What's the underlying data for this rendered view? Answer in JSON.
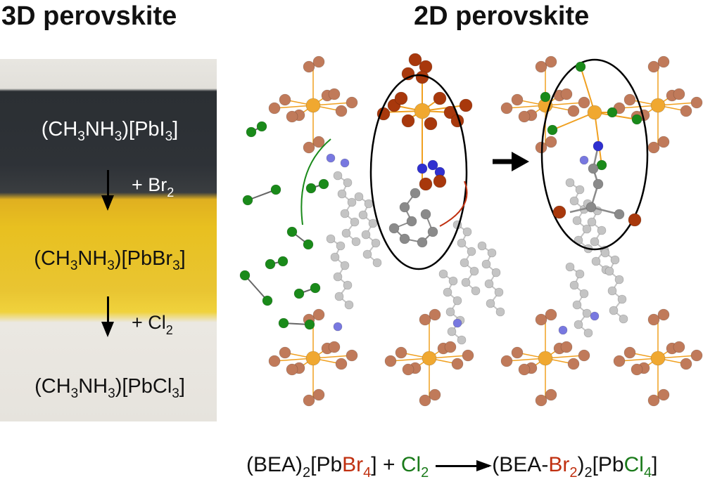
{
  "titles": {
    "left": "3D perovskite",
    "right": "2D perovskite"
  },
  "left_panel": {
    "formulas": [
      [
        {
          "t": "(CH"
        },
        {
          "t": "3",
          "sub": true
        },
        {
          "t": "NH"
        },
        {
          "t": "3",
          "sub": true
        },
        {
          "t": ")[PbI"
        },
        {
          "t": "3",
          "sub": true
        },
        {
          "t": "]"
        }
      ],
      [
        {
          "t": "(CH"
        },
        {
          "t": "3",
          "sub": true
        },
        {
          "t": "NH"
        },
        {
          "t": "3",
          "sub": true
        },
        {
          "t": ")[PbBr"
        },
        {
          "t": "3",
          "sub": true
        },
        {
          "t": "]"
        }
      ],
      [
        {
          "t": "(CH"
        },
        {
          "t": "3",
          "sub": true
        },
        {
          "t": "NH"
        },
        {
          "t": "3",
          "sub": true
        },
        {
          "t": ")[PbCl"
        },
        {
          "t": "3",
          "sub": true
        },
        {
          "t": "]"
        }
      ]
    ],
    "reagents": [
      [
        {
          "t": "+ Br"
        },
        {
          "t": "2",
          "sub": true
        }
      ],
      [
        {
          "t": "+ Cl"
        },
        {
          "t": "2",
          "sub": true
        }
      ]
    ],
    "band_colors": {
      "dark": "#2e3237",
      "yellow": "#e8c020",
      "white": "#e6e3dd"
    }
  },
  "equation": {
    "reactants": [
      {
        "t": "(BEA)"
      },
      {
        "t": "2",
        "sub": true
      },
      {
        "t": "[Pb"
      },
      {
        "t": "Br",
        "c": "#c03010"
      },
      {
        "t": "4",
        "sub": true,
        "c": "#c03010"
      },
      {
        "t": "] + "
      },
      {
        "t": "Cl",
        "c": "#1a7a1a"
      },
      {
        "t": "2",
        "sub": true,
        "c": "#1a7a1a"
      }
    ],
    "products": [
      {
        "t": "(BEA-"
      },
      {
        "t": "Br",
        "c": "#c03010"
      },
      {
        "t": "2",
        "sub": true,
        "c": "#c03010"
      },
      {
        "t": ")"
      },
      {
        "t": "2",
        "sub": true
      },
      {
        "t": "[Pb"
      },
      {
        "t": "Cl",
        "c": "#1a7a1a"
      },
      {
        "t": "4",
        "sub": true,
        "c": "#1a7a1a"
      },
      {
        "t": "]"
      }
    ]
  },
  "atom_colors": {
    "Pb": "#f0a830",
    "Br": "#a8380c",
    "Br_layer": "#c07a5a",
    "Cl": "#1a8a1a",
    "N": "#3030d0",
    "C": "#8a8a8a",
    "C_light": "#c4c4c4",
    "bond": "#f0a020"
  }
}
